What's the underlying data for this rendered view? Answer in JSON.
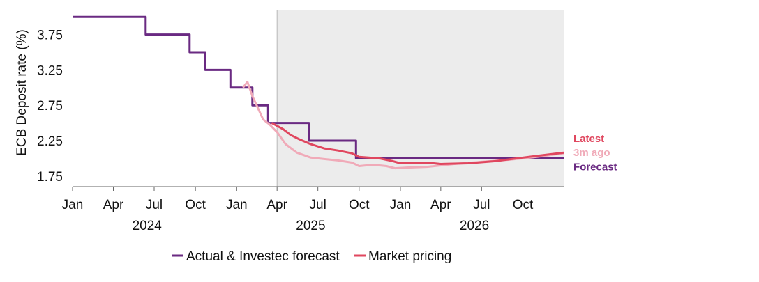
{
  "chart_data": {
    "type": "line",
    "title": "",
    "ylabel": "ECB Deposit rate (%)",
    "xlabel": "",
    "y_ticks": [
      "1.75",
      "2.25",
      "2.75",
      "3.25",
      "3.75"
    ],
    "ylim": [
      1.6,
      4.1
    ],
    "xlim": [
      "2024-01-01",
      "2026-12-31"
    ],
    "x_ticks": [
      {
        "date": "2024-01-01",
        "label": "Jan"
      },
      {
        "date": "2024-04-01",
        "label": "Apr"
      },
      {
        "date": "2024-07-01",
        "label": "Jul"
      },
      {
        "date": "2024-10-01",
        "label": "Oct"
      },
      {
        "date": "2025-01-01",
        "label": "Jan"
      },
      {
        "date": "2025-04-01",
        "label": "Apr"
      },
      {
        "date": "2025-07-01",
        "label": "Jul"
      },
      {
        "date": "2025-10-01",
        "label": "Oct"
      },
      {
        "date": "2026-01-01",
        "label": "Jan"
      },
      {
        "date": "2026-04-01",
        "label": "Apr"
      },
      {
        "date": "2026-07-01",
        "label": "Jul"
      },
      {
        "date": "2026-10-01",
        "label": "Oct"
      }
    ],
    "years": [
      {
        "date": "2024-06-15",
        "label": "2024"
      },
      {
        "date": "2025-06-15",
        "label": "2025"
      },
      {
        "date": "2026-06-15",
        "label": "2026"
      }
    ],
    "forecast_shading": {
      "start": "2025-04-01",
      "end": "2026-12-31",
      "color": "#ececec"
    },
    "series": [
      {
        "name": "Actual & Investec forecast",
        "color": "#6a2a82",
        "step": true,
        "points": [
          [
            "2024-01-01",
            4.0
          ],
          [
            "2024-06-12",
            3.75
          ],
          [
            "2024-09-18",
            3.5
          ],
          [
            "2024-10-23",
            3.25
          ],
          [
            "2024-12-18",
            3.0
          ],
          [
            "2025-02-05",
            2.75
          ],
          [
            "2025-03-12",
            2.5
          ],
          [
            "2025-06-11",
            2.25
          ],
          [
            "2025-09-24",
            2.0
          ],
          [
            "2026-12-31",
            2.0
          ]
        ]
      },
      {
        "name": "3m ago",
        "color": "#f0aab8",
        "step": false,
        "points": [
          [
            "2025-01-15",
            3.0
          ],
          [
            "2025-01-25",
            3.08
          ],
          [
            "2025-02-05",
            2.88
          ],
          [
            "2025-03-01",
            2.55
          ],
          [
            "2025-03-15",
            2.48
          ],
          [
            "2025-04-01",
            2.37
          ],
          [
            "2025-04-20",
            2.2
          ],
          [
            "2025-05-15",
            2.08
          ],
          [
            "2025-06-15",
            2.01
          ],
          [
            "2025-07-15",
            1.99
          ],
          [
            "2025-08-15",
            1.97
          ],
          [
            "2025-09-15",
            1.94
          ],
          [
            "2025-10-01",
            1.89
          ],
          [
            "2025-11-01",
            1.91
          ],
          [
            "2025-12-01",
            1.89
          ],
          [
            "2025-12-20",
            1.86
          ],
          [
            "2026-01-15",
            1.87
          ],
          [
            "2026-03-01",
            1.88
          ],
          [
            "2026-05-01",
            1.92
          ],
          [
            "2026-07-01",
            1.95
          ],
          [
            "2026-09-01",
            1.98
          ],
          [
            "2026-11-01",
            2.02
          ],
          [
            "2026-12-31",
            2.07
          ]
        ]
      },
      {
        "name": "Latest",
        "color": "#e0475f",
        "step": false,
        "points": [
          [
            "2025-03-20",
            2.5
          ],
          [
            "2025-04-15",
            2.41
          ],
          [
            "2025-05-01",
            2.33
          ],
          [
            "2025-05-20",
            2.27
          ],
          [
            "2025-06-15",
            2.2
          ],
          [
            "2025-07-15",
            2.14
          ],
          [
            "2025-08-15",
            2.11
          ],
          [
            "2025-09-15",
            2.07
          ],
          [
            "2025-10-01",
            2.02
          ],
          [
            "2025-11-15",
            2.0
          ],
          [
            "2025-12-15",
            1.96
          ],
          [
            "2026-01-01",
            1.93
          ],
          [
            "2026-02-01",
            1.94
          ],
          [
            "2026-03-01",
            1.94
          ],
          [
            "2026-04-01",
            1.92
          ],
          [
            "2026-06-01",
            1.93
          ],
          [
            "2026-08-01",
            1.96
          ],
          [
            "2026-10-01",
            2.01
          ],
          [
            "2026-12-31",
            2.08
          ]
        ]
      }
    ],
    "end_labels": [
      {
        "text": "Latest",
        "color": "#e0475f",
        "value": 2.28
      },
      {
        "text": "3m ago",
        "color": "#f0aab8",
        "value": 2.08
      },
      {
        "text": "Forecast",
        "color": "#6a2a82",
        "value": 1.88
      }
    ],
    "legend": {
      "placement": "bottom",
      "items": [
        {
          "label": "Actual & Investec forecast",
          "color": "#6a2a82"
        },
        {
          "label": "Market pricing",
          "color": "#e0475f"
        }
      ]
    },
    "grid": false
  }
}
